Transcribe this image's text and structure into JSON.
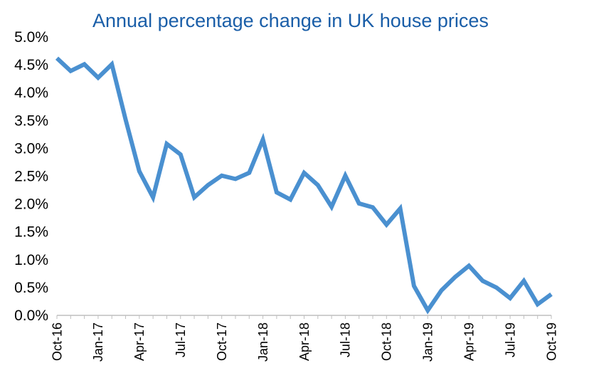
{
  "chart_data": {
    "type": "line",
    "title": "Annual percentage change in UK house prices",
    "xlabel": "",
    "ylabel": "",
    "ylim": [
      0,
      5
    ],
    "grid": false,
    "y_tick_labels": [
      "0.0%",
      "0.5%",
      "1.0%",
      "1.5%",
      "2.0%",
      "2.5%",
      "3.0%",
      "3.5%",
      "4.0%",
      "4.5%",
      "5.0%"
    ],
    "x_tick_labels": [
      "Oct-16",
      "Jan-17",
      "Apr-17",
      "Jul-17",
      "Oct-17",
      "Jan-18",
      "Apr-18",
      "Jul-18",
      "Oct-18",
      "Jan-19",
      "Apr-19",
      "Jul-19",
      "Oct-19"
    ],
    "series_color": "#4a90d0",
    "x": [
      "Oct-16",
      "Nov-16",
      "Dec-16",
      "Jan-17",
      "Feb-17",
      "Mar-17",
      "Apr-17",
      "May-17",
      "Jun-17",
      "Jul-17",
      "Aug-17",
      "Sep-17",
      "Oct-17",
      "Nov-17",
      "Dec-17",
      "Jan-18",
      "Feb-18",
      "Mar-18",
      "Apr-18",
      "May-18",
      "Jun-18",
      "Jul-18",
      "Aug-18",
      "Sep-18",
      "Oct-18",
      "Nov-18",
      "Dec-18",
      "Jan-19",
      "Feb-19",
      "Mar-19",
      "Apr-19",
      "May-19",
      "Jun-19",
      "Jul-19",
      "Aug-19",
      "Sep-19",
      "Oct-19"
    ],
    "series": [
      {
        "values": [
          4.62,
          4.39,
          4.51,
          4.27,
          4.51,
          3.52,
          2.59,
          2.12,
          3.08,
          2.89,
          2.12,
          2.34,
          2.51,
          2.45,
          2.56,
          3.16,
          2.21,
          2.08,
          2.56,
          2.34,
          1.95,
          2.51,
          2.01,
          1.94,
          1.63,
          1.92,
          0.53,
          0.09,
          0.45,
          0.69,
          0.89,
          0.62,
          0.5,
          0.31,
          0.62,
          0.2,
          0.38
        ]
      }
    ]
  }
}
